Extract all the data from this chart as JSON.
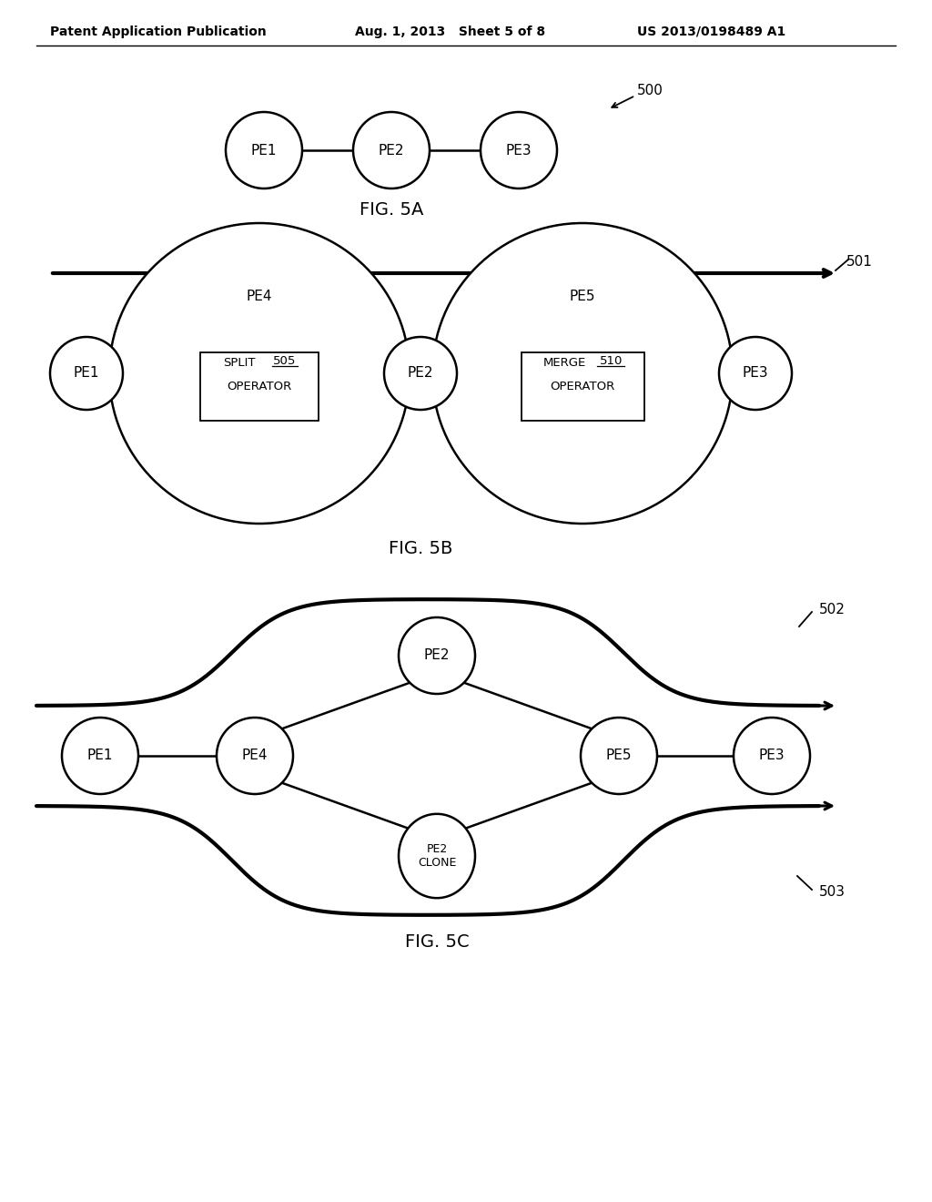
{
  "bg_color": "#ffffff",
  "header_left": "Patent Application Publication",
  "header_mid": "Aug. 1, 2013   Sheet 5 of 8",
  "header_right": "US 2013/0198489 A1",
  "fig5a_label": "FIG. 5A",
  "fig5b_label": "FIG. 5B",
  "fig5c_label": "FIG. 5C",
  "ref_500": "500",
  "ref_501": "501",
  "ref_502": "502",
  "ref_503": "503",
  "ref_505": "505",
  "ref_510": "510"
}
